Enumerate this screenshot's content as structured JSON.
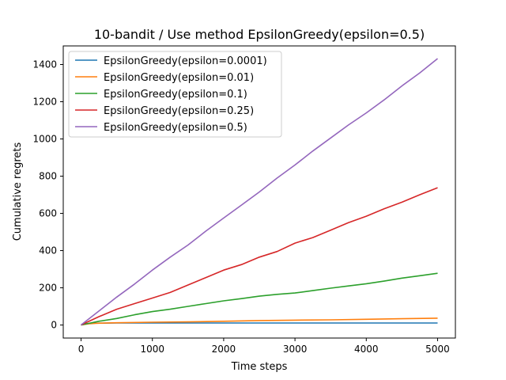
{
  "chart_data": {
    "type": "line",
    "title": "10-bandit / Use method EpsilonGreedy(epsilon=0.5)",
    "xlabel": "Time steps",
    "ylabel": "Cumulative regrets",
    "xlim": [
      -250,
      5250
    ],
    "ylim": [
      -70,
      1500
    ],
    "xticks": [
      0,
      1000,
      2000,
      3000,
      4000,
      5000
    ],
    "yticks": [
      0,
      200,
      400,
      600,
      800,
      1000,
      1200,
      1400
    ],
    "grid": false,
    "legend_position": "top-left",
    "series": [
      {
        "name": "EpsilonGreedy(epsilon=0.0001)",
        "color": "#1f77b4",
        "x": [
          0,
          100,
          200,
          500,
          1000,
          2000,
          3000,
          4000,
          5000
        ],
        "y": [
          0,
          8,
          10,
          11,
          11,
          11,
          11,
          11,
          11
        ]
      },
      {
        "name": "EpsilonGreedy(epsilon=0.01)",
        "color": "#ff7f0e",
        "x": [
          0,
          100,
          200,
          500,
          1000,
          1500,
          2000,
          2500,
          3000,
          3500,
          4000,
          4500,
          5000
        ],
        "y": [
          0,
          6,
          9,
          12,
          15,
          17,
          20,
          24,
          26,
          28,
          31,
          34,
          37
        ]
      },
      {
        "name": "EpsilonGreedy(epsilon=0.1)",
        "color": "#2ca02c",
        "x": [
          0,
          250,
          500,
          750,
          1000,
          1250,
          1500,
          1750,
          2000,
          2250,
          2500,
          2750,
          3000,
          3250,
          3500,
          3750,
          4000,
          4250,
          4500,
          4750,
          5000
        ],
        "y": [
          0,
          20,
          35,
          55,
          72,
          85,
          100,
          115,
          130,
          142,
          155,
          165,
          172,
          185,
          198,
          210,
          222,
          236,
          252,
          265,
          278
        ]
      },
      {
        "name": "EpsilonGreedy(epsilon=0.25)",
        "color": "#d62728",
        "x": [
          0,
          250,
          500,
          750,
          1000,
          1250,
          1500,
          1750,
          2000,
          2250,
          2500,
          2750,
          3000,
          3250,
          3500,
          3750,
          4000,
          4250,
          4500,
          4750,
          5000
        ],
        "y": [
          0,
          45,
          85,
          115,
          145,
          175,
          215,
          255,
          295,
          325,
          365,
          395,
          440,
          470,
          510,
          550,
          585,
          625,
          660,
          700,
          738
        ]
      },
      {
        "name": "EpsilonGreedy(epsilon=0.5)",
        "color": "#9467bd",
        "x": [
          0,
          250,
          500,
          750,
          1000,
          1250,
          1500,
          1750,
          2000,
          2250,
          2500,
          2750,
          3000,
          3250,
          3500,
          3750,
          4000,
          4250,
          4500,
          4750,
          5000
        ],
        "y": [
          0,
          75,
          150,
          220,
          295,
          365,
          430,
          505,
          575,
          645,
          715,
          790,
          860,
          935,
          1005,
          1075,
          1140,
          1210,
          1285,
          1355,
          1432
        ]
      }
    ]
  }
}
